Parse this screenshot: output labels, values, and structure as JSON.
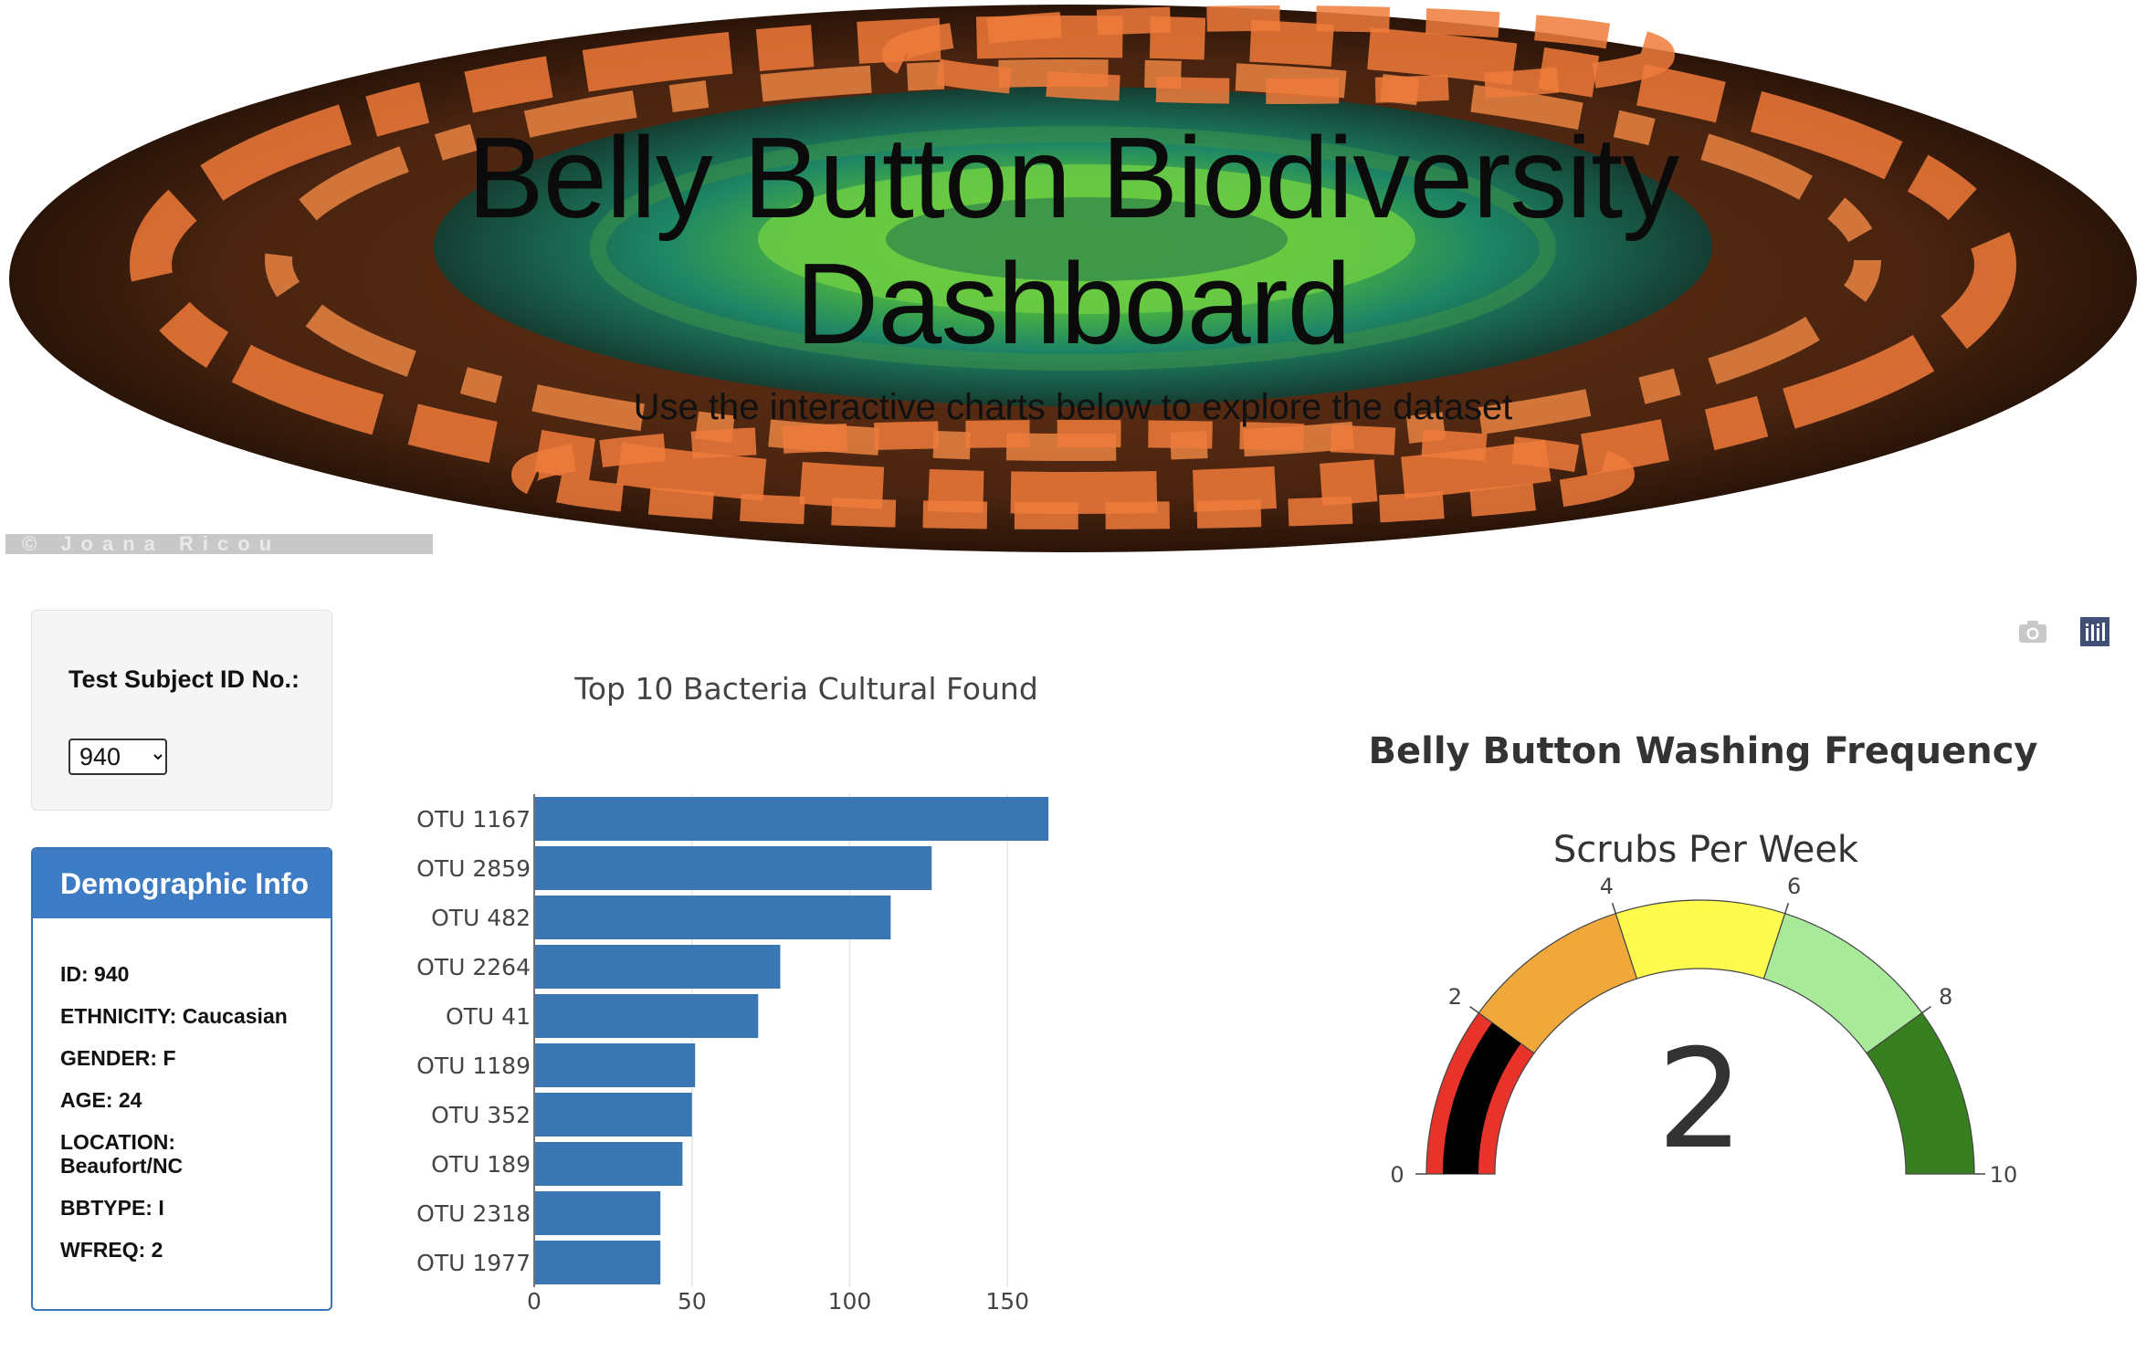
{
  "hero": {
    "title_line1": "Belly Button Biodiversity",
    "title_line2": "Dashboard",
    "subtitle": "Use the interactive charts below to explore the dataset",
    "credit": "© Joana Ricou"
  },
  "selector": {
    "label": "Test Subject ID No.:",
    "selected": "940"
  },
  "demographics": {
    "header": "Demographic Info",
    "id": "ID: 940",
    "ethnicity": "ETHNICITY: Caucasian",
    "gender": "GENDER: F",
    "age": "AGE: 24",
    "location": "LOCATION: Beaufort/NC",
    "bbtype": "BBTYPE: I",
    "wfreq": "WFREQ: 2"
  },
  "modebar": {
    "camera_icon": "camera-icon",
    "plotly_icon": "plotly-logo-icon"
  },
  "chart_data": [
    {
      "type": "bar",
      "orientation": "horizontal",
      "title": "Top 10 Bacteria Cultural Found",
      "categories": [
        "OTU 1167",
        "OTU 2859",
        "OTU 482",
        "OTU 2264",
        "OTU 41",
        "OTU 1189",
        "OTU 352",
        "OTU 189",
        "OTU 2318",
        "OTU 1977"
      ],
      "values": [
        163,
        126,
        113,
        78,
        71,
        51,
        50,
        47,
        40,
        40
      ],
      "xticks": [
        "0",
        "50",
        "100",
        "150"
      ],
      "xlim": [
        0,
        165
      ],
      "grid": true,
      "color": "#3a76b2"
    },
    {
      "type": "gauge",
      "title": "Belly Button Washing Frequency",
      "subtitle": "Scrubs Per Week",
      "value": 2,
      "value_label": "2",
      "range": [
        0,
        10
      ],
      "ticks": [
        "0",
        "2",
        "4",
        "6",
        "8",
        "10"
      ],
      "steps": [
        {
          "range": [
            0,
            2
          ],
          "color": "#e8332a"
        },
        {
          "range": [
            2,
            4
          ],
          "color": "#f0a83a"
        },
        {
          "range": [
            4,
            6
          ],
          "color": "#fdfc4e"
        },
        {
          "range": [
            6,
            8
          ],
          "color": "#a8e99a"
        },
        {
          "range": [
            8,
            10
          ],
          "color": "#38801f"
        }
      ],
      "bar_color": "#000000"
    }
  ]
}
